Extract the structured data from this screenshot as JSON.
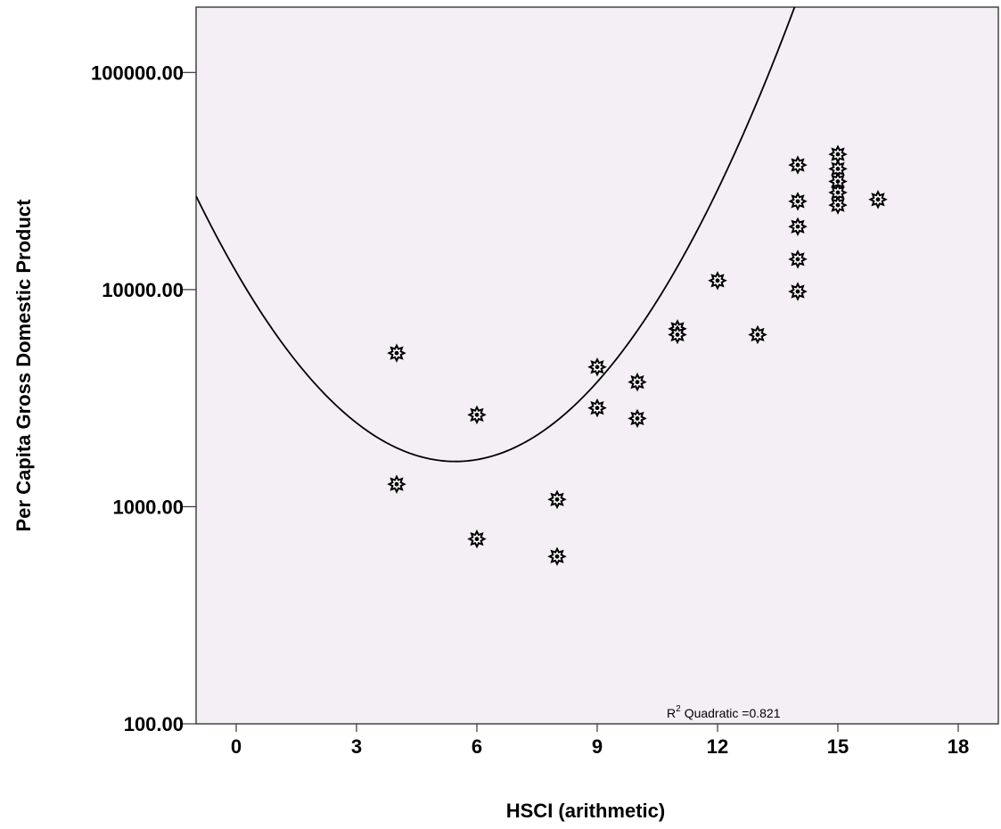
{
  "chart_data": {
    "type": "scatter",
    "xlabel": "HSCI (arithmetic)",
    "ylabel": "Per Capita Gross Domestic Product",
    "x_ticks": [
      "0",
      "3",
      "6",
      "9",
      "12",
      "15",
      "18"
    ],
    "y_ticks": [
      "100.00",
      "1000.00",
      "10000.00",
      "100000.00"
    ],
    "xlim": [
      -1,
      19
    ],
    "ylim": [
      100,
      200000
    ],
    "y_scale": "log",
    "grid": false,
    "colors": {
      "plot_background": "#f4eff4",
      "points": "#000000",
      "fit_line": "#000000"
    },
    "marker": "star-icon",
    "points": [
      {
        "x": 4,
        "y": 5100
      },
      {
        "x": 4,
        "y": 1270
      },
      {
        "x": 6,
        "y": 2650
      },
      {
        "x": 6,
        "y": 710
      },
      {
        "x": 8,
        "y": 1080
      },
      {
        "x": 8,
        "y": 590
      },
      {
        "x": 9,
        "y": 4400
      },
      {
        "x": 9,
        "y": 2850
      },
      {
        "x": 10,
        "y": 3750
      },
      {
        "x": 10,
        "y": 2550
      },
      {
        "x": 11,
        "y": 6600
      },
      {
        "x": 11,
        "y": 6200
      },
      {
        "x": 12,
        "y": 11000
      },
      {
        "x": 13,
        "y": 6200
      },
      {
        "x": 14,
        "y": 37500
      },
      {
        "x": 14,
        "y": 25500
      },
      {
        "x": 14,
        "y": 19500
      },
      {
        "x": 14,
        "y": 13800
      },
      {
        "x": 14,
        "y": 9800
      },
      {
        "x": 15,
        "y": 42000
      },
      {
        "x": 15,
        "y": 36000
      },
      {
        "x": 15,
        "y": 31500
      },
      {
        "x": 15,
        "y": 28000
      },
      {
        "x": 15,
        "y": 24500
      },
      {
        "x": 16,
        "y": 26000
      }
    ],
    "fit": {
      "type": "quadratic",
      "r2_label": "Quadratic =0.821",
      "r2_prefix": "R",
      "r2_sup": "2",
      "note": "curve of log10(y) vs x",
      "coefficients_log10": {
        "a": 0.02926,
        "b": -0.3197,
        "c": 4.0817
      }
    }
  }
}
